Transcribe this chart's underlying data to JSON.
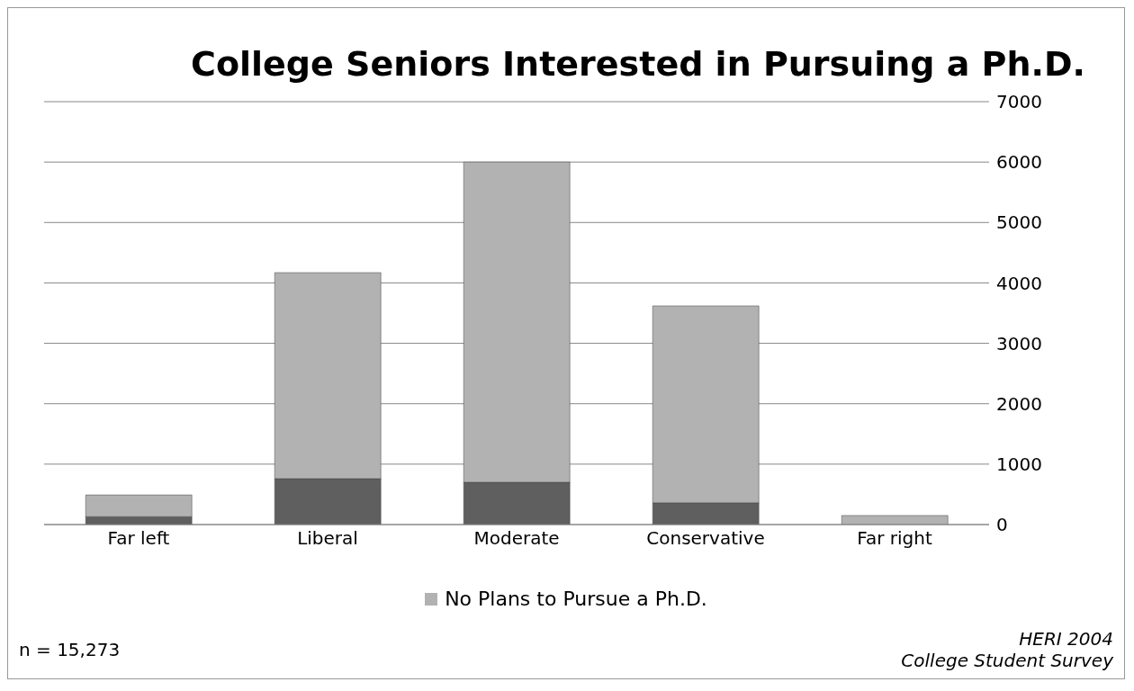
{
  "chart_data": {
    "type": "bar",
    "title": "College Seniors Interested in Pursuing a Ph.D.",
    "categories": [
      "Far left",
      "Liberal",
      "Moderate",
      "Conservative",
      "Far right"
    ],
    "stacked": true,
    "series": [
      {
        "color": "#5f5f5f",
        "values": [
          130,
          760,
          700,
          360,
          null
        ]
      },
      {
        "name": "No Plans to Pursue a Ph.D.",
        "color": "#b2b2b2",
        "values": [
          360,
          3410,
          5300,
          3260,
          150
        ]
      }
    ],
    "ylim": [
      0,
      7000
    ],
    "yticks": [
      0,
      1000,
      2000,
      3000,
      4000,
      5000,
      6000,
      7000
    ],
    "grid": "y",
    "legend": "bottom",
    "annotations": [
      "n = 15,273",
      "HERI 2004",
      "College Student Survey"
    ]
  }
}
